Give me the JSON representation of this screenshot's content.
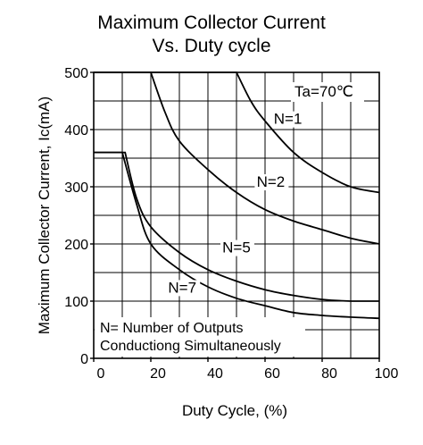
{
  "chart_data": {
    "type": "line",
    "title": "Maximum Collector Current",
    "subtitle": "Vs. Duty cycle",
    "xlabel": "Duty Cycle,  (%)",
    "ylabel": "Maximum Collector Current, Ic(mA)",
    "xlim": [
      0,
      100
    ],
    "ylim": [
      0,
      500
    ],
    "x_ticks": [
      0,
      20,
      40,
      60,
      80,
      100
    ],
    "y_ticks": [
      0,
      100,
      200,
      300,
      400,
      500
    ],
    "grid": true,
    "annotations": {
      "condition": "Ta=70℃",
      "note_line1": "N= Number of Outputs",
      "note_line2": "Conductiong Simultaneously"
    },
    "series": [
      {
        "label": "N=1",
        "x": [
          0,
          50,
          55,
          60,
          70,
          80,
          90,
          100
        ],
        "y": [
          500,
          500,
          450,
          415,
          360,
          325,
          300,
          290
        ]
      },
      {
        "label": "N=2",
        "x": [
          0,
          10,
          20,
          25,
          30,
          40,
          50,
          60,
          70,
          80,
          90,
          100
        ],
        "y": [
          500,
          500,
          500,
          430,
          380,
          330,
          290,
          260,
          240,
          225,
          210,
          200
        ]
      },
      {
        "label": "N=5",
        "x": [
          0,
          11,
          15,
          20,
          30,
          40,
          50,
          60,
          70,
          80,
          90,
          100
        ],
        "y": [
          360,
          360,
          280,
          230,
          185,
          155,
          135,
          120,
          110,
          103,
          100,
          100
        ]
      },
      {
        "label": "N=7",
        "x": [
          0,
          10,
          15,
          20,
          30,
          40,
          50,
          60,
          70,
          80,
          90,
          100
        ],
        "y": [
          360,
          360,
          270,
          200,
          155,
          125,
          105,
          92,
          80,
          75,
          72,
          70
        ]
      }
    ],
    "series_labels": [
      {
        "text": "N=1",
        "x": 68,
        "y": 410
      },
      {
        "text": "N=2",
        "x": 62,
        "y": 300
      },
      {
        "text": "N=5",
        "x": 50,
        "y": 185
      },
      {
        "text": "N=7",
        "x": 31,
        "y": 115
      }
    ]
  },
  "colors": {
    "line": "#000000",
    "grid": "#000000",
    "background": "#ffffff"
  }
}
